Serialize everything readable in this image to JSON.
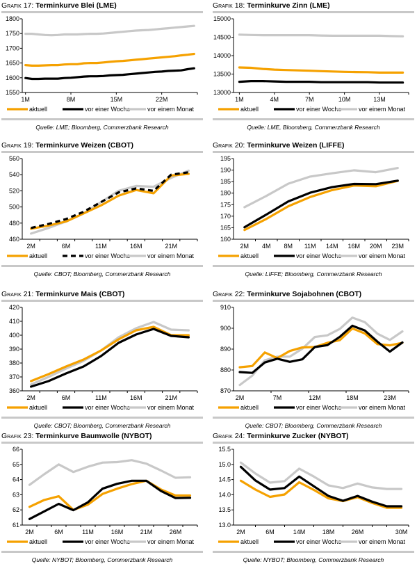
{
  "legend_labels": {
    "aktuell": "aktuell",
    "woche": "vor einer Woche",
    "monat": "vor einem Monat"
  },
  "colors": {
    "aktuell": "#f5a100",
    "woche": "#000000",
    "monat": "#c8c8c8"
  },
  "chart_data": [
    {
      "id": "g17",
      "type": "line",
      "title_prefix": "Grafik",
      "number": "17:",
      "title": "Terminkurve Blei (LME)",
      "source": "Quelle: LME; Bloomberg, Commerzbank Research",
      "ylim": [
        1550,
        1800
      ],
      "yticks": [
        1550,
        1600,
        1650,
        1700,
        1750,
        1800
      ],
      "ytick_labels": [
        "1550",
        "1600",
        "1650",
        "1700",
        "1750",
        "1800"
      ],
      "x_count": 27,
      "xtick_positions": [
        0,
        7,
        14,
        21
      ],
      "xtick_labels": [
        "1M",
        "8M",
        "15M",
        "22M"
      ],
      "tick_marks": [
        0,
        7,
        14,
        21
      ],
      "woche_dashed": false,
      "series": [
        {
          "key": "aktuell",
          "name": "aktuell",
          "values": [
            1643,
            1641,
            1641,
            1642,
            1643,
            1643,
            1645,
            1646,
            1646,
            1649,
            1650,
            1650,
            1652,
            1654,
            1656,
            1657,
            1659,
            1661,
            1663,
            1665,
            1667,
            1669,
            1671,
            1673,
            1676,
            1678,
            1681
          ]
        },
        {
          "key": "woche",
          "name": "vor einer Woche",
          "values": [
            1599,
            1596,
            1596,
            1597,
            1597,
            1597,
            1599,
            1600,
            1602,
            1604,
            1605,
            1605,
            1606,
            1608,
            1609,
            1610,
            1612,
            1614,
            1616,
            1618,
            1620,
            1621,
            1623,
            1624,
            1625,
            1629,
            1632
          ]
        },
        {
          "key": "monat",
          "name": "vor einem Monat",
          "values": [
            1749,
            1749,
            1747,
            1745,
            1744,
            1745,
            1747,
            1747,
            1747,
            1748,
            1749,
            1749,
            1750,
            1752,
            1754,
            1756,
            1758,
            1760,
            1761,
            1762,
            1764,
            1766,
            1768,
            1770,
            1772,
            1774,
            1776
          ]
        }
      ]
    },
    {
      "id": "g18",
      "type": "line",
      "title_prefix": "Grafik",
      "number": "18:",
      "title": "Terminkurve Zinn (LME)",
      "source": "Quelle: LME, Bloomberg, Commerzbank Research",
      "ylim": [
        13000,
        15000
      ],
      "yticks": [
        13000,
        13500,
        14000,
        14500,
        15000
      ],
      "ytick_labels": [
        "13000",
        "13500",
        "14000",
        "14500",
        "15000"
      ],
      "x_count": 15,
      "xtick_positions": [
        0,
        3,
        6,
        9,
        12
      ],
      "xtick_labels": [
        "1M",
        "4M",
        "7M",
        "10M",
        "13M"
      ],
      "tick_marks": [
        0,
        3,
        6,
        9,
        12
      ],
      "woche_dashed": false,
      "series": [
        {
          "key": "aktuell",
          "name": "aktuell",
          "values": [
            13680,
            13670,
            13640,
            13620,
            13610,
            13600,
            13590,
            13580,
            13570,
            13560,
            13555,
            13550,
            13540,
            13540,
            13540
          ]
        },
        {
          "key": "woche",
          "name": "vor einer Woche",
          "values": [
            13290,
            13310,
            13310,
            13300,
            13290,
            13290,
            13290,
            13280,
            13280,
            13280,
            13280,
            13280,
            13270,
            13270,
            13270
          ]
        },
        {
          "key": "monat",
          "name": "vor einem Monat",
          "values": [
            14570,
            14560,
            14555,
            14555,
            14555,
            14555,
            14555,
            14545,
            14540,
            14540,
            14540,
            14540,
            14540,
            14530,
            14525
          ]
        }
      ]
    },
    {
      "id": "g19",
      "type": "line",
      "title_prefix": "Grafik",
      "number": "19:",
      "title": "Terminkurve Weizen (CBOT)",
      "source": "Quelle: CBOT; Bloomberg, Commerzbank Research",
      "ylim": [
        460,
        560
      ],
      "yticks": [
        460,
        480,
        500,
        520,
        540,
        560
      ],
      "ytick_labels": [
        "460",
        "480",
        "500",
        "520",
        "540",
        "560"
      ],
      "x_count": 10,
      "xtick_positions": [
        0,
        2,
        4,
        6,
        8
      ],
      "xtick_labels": [
        "2M",
        "6M",
        "11M",
        "16M",
        "21M"
      ],
      "tick_marks": [
        0.5,
        1.5,
        2.5,
        3.5,
        4.5,
        5.5,
        6.5,
        7.5,
        8.5
      ],
      "woche_dashed": true,
      "series": [
        {
          "key": "aktuell",
          "name": "aktuell",
          "values": [
            473,
            477,
            482,
            492,
            502,
            514,
            521,
            517,
            539,
            541
          ]
        },
        {
          "key": "woche",
          "name": "vor einer Woche",
          "values": [
            474,
            479,
            485,
            494,
            506,
            518,
            523,
            520,
            540,
            543
          ]
        },
        {
          "key": "monat",
          "name": "vor einem Monat",
          "values": [
            467,
            474,
            482,
            492,
            506,
            520,
            526,
            525,
            536,
            545
          ]
        }
      ]
    },
    {
      "id": "g20",
      "type": "line",
      "title_prefix": "Grafik",
      "number": "20:",
      "title": "Terminkurve Weizen (LIFFE)",
      "source": "Quelle: LIFFE; Bloomberg, Commerzbank Research",
      "ylim": [
        160,
        195
      ],
      "yticks": [
        160,
        165,
        170,
        175,
        180,
        185,
        190,
        195
      ],
      "ytick_labels": [
        "160",
        "165",
        "170",
        "175",
        "180",
        "185",
        "190",
        "195"
      ],
      "x_count": 8,
      "xtick_positions": [
        0,
        1,
        2,
        3,
        4,
        5,
        6,
        7
      ],
      "xtick_labels": [
        "2M",
        "4M",
        "8M",
        "11M",
        "14M",
        "16M",
        "20M",
        "23M"
      ],
      "tick_marks": [
        0.5,
        1.5,
        2.5,
        3.5,
        4.5,
        5.5,
        6.5
      ],
      "woche_dashed": false,
      "series": [
        {
          "key": "aktuell",
          "name": "aktuell",
          "values": [
            164.0,
            168.8,
            174.3,
            178.3,
            181.3,
            183.3,
            183.0,
            185.3
          ]
        },
        {
          "key": "woche",
          "name": "vor einer Woche",
          "values": [
            165.2,
            170.7,
            176.4,
            180.2,
            182.6,
            184.0,
            183.9,
            185.4
          ]
        },
        {
          "key": "monat",
          "name": "vor einem Monat",
          "values": [
            173.9,
            178.8,
            184.1,
            187.2,
            188.6,
            189.9,
            189.1,
            190.9
          ]
        }
      ]
    },
    {
      "id": "g21",
      "type": "line",
      "title_prefix": "Grafik",
      "number": "21:",
      "title": "Terminkurve Mais (CBOT)",
      "source": "Quelle: CBOT; Bloomberg, Commerzbank Research",
      "ylim": [
        360,
        420
      ],
      "yticks": [
        360,
        370,
        380,
        390,
        400,
        410,
        420
      ],
      "ytick_labels": [
        "360",
        "370",
        "380",
        "390",
        "400",
        "410",
        "420"
      ],
      "x_count": 10,
      "xtick_positions": [
        0,
        2,
        4,
        6,
        8
      ],
      "xtick_labels": [
        "2M",
        "6M",
        "11M",
        "16M",
        "21M"
      ],
      "tick_marks": [
        0.5,
        1.5,
        2.5,
        3.5,
        4.5,
        5.5,
        6.5,
        7.5,
        8.5
      ],
      "woche_dashed": false,
      "series": [
        {
          "key": "aktuell",
          "name": "aktuell",
          "values": [
            367,
            372,
            377.5,
            382.5,
            389,
            397,
            403.5,
            406,
            400,
            400
          ]
        },
        {
          "key": "woche",
          "name": "vor einer Woche",
          "values": [
            363,
            367,
            372.5,
            377.5,
            385,
            394.5,
            400.5,
            404.5,
            399.5,
            398.5
          ]
        },
        {
          "key": "monat",
          "name": "vor einem Monat",
          "values": [
            364.5,
            370,
            376,
            381.5,
            389,
            398.5,
            405,
            409.5,
            404,
            403.5
          ]
        }
      ]
    },
    {
      "id": "g22",
      "type": "line",
      "title_prefix": "Grafik",
      "number": "22:",
      "title": "Terminkurve Sojabohnen (CBOT)",
      "source": "Quelle: CBOT; Bloomberg, Commerzbank Research",
      "ylim": [
        870,
        910
      ],
      "yticks": [
        870,
        880,
        890,
        900,
        910
      ],
      "ytick_labels": [
        "870",
        "880",
        "890",
        "900",
        "910"
      ],
      "x_count": 14,
      "xtick_positions": [
        0,
        3,
        6,
        9,
        12
      ],
      "xtick_labels": [
        "2M",
        "7M",
        "12M",
        "18M",
        "23M"
      ],
      "tick_marks": [
        2.5,
        5.5,
        8.5,
        11.5
      ],
      "woche_dashed": false,
      "series": [
        {
          "key": "aktuell",
          "name": "aktuell",
          "values": [
            881.3,
            881.9,
            888.4,
            885.7,
            889.1,
            890.8,
            891,
            893,
            894.3,
            899.9,
            897.5,
            892.4,
            891.8,
            893
          ]
        },
        {
          "key": "woche",
          "name": "vor einer Woche",
          "values": [
            879.0,
            878.6,
            883.6,
            885.4,
            883.9,
            885.1,
            891.0,
            891.9,
            895.9,
            901.2,
            898.9,
            893.6,
            888.8,
            893.2
          ]
        },
        {
          "key": "monat",
          "name": "vor einem Monat",
          "values": [
            872.8,
            877.3,
            884.6,
            886.4,
            886.4,
            890.2,
            895.8,
            896.6,
            899.7,
            905.1,
            902.9,
            897.4,
            894.4,
            898.5
          ]
        }
      ]
    },
    {
      "id": "g23",
      "type": "line",
      "title_prefix": "Grafik",
      "number": "23:",
      "title": "Terminkurve Baumwolle (NYBOT)",
      "source": "Quelle: NYBOT; Bloomberg, Commerzbank Research",
      "ylim": [
        61,
        66
      ],
      "yticks": [
        61,
        62,
        63,
        64,
        65,
        66
      ],
      "ytick_labels": [
        "61",
        "62",
        "63",
        "64",
        "65",
        "66"
      ],
      "x_count": 12,
      "xtick_positions": [
        0,
        2,
        4,
        6,
        8,
        10
      ],
      "xtick_labels": [
        "2M",
        "6M",
        "11M",
        "16M",
        "21M",
        "26M"
      ],
      "tick_marks": [
        0.5,
        1.5,
        2.5,
        3.5,
        4.5,
        5.5,
        6.5,
        7.5,
        8.5,
        9.5,
        10.5
      ],
      "woche_dashed": false,
      "series": [
        {
          "key": "aktuell",
          "name": "aktuell",
          "values": [
            62.2,
            62.65,
            62.9,
            62.0,
            62.35,
            63.05,
            63.4,
            63.7,
            63.92,
            63.35,
            62.95,
            62.95
          ]
        },
        {
          "key": "woche",
          "name": "vor einer Woche",
          "values": [
            61.4,
            61.9,
            62.4,
            61.98,
            62.5,
            63.4,
            63.72,
            63.92,
            63.92,
            63.25,
            62.78,
            62.8
          ]
        },
        {
          "key": "monat",
          "name": "vor einem Monat",
          "values": [
            63.65,
            64.35,
            65.0,
            64.5,
            64.85,
            65.12,
            65.15,
            65.28,
            65.05,
            64.6,
            64.12,
            64.15
          ]
        }
      ]
    },
    {
      "id": "g24",
      "type": "line",
      "title_prefix": "Grafik",
      "number": "24:",
      "title": "Terminkurve Zucker (NYBOT)",
      "source": "Quelle: NYBOT; Bloomberg, Commerzbank Research",
      "ylim": [
        13.0,
        15.5
      ],
      "yticks": [
        13.0,
        13.5,
        14.0,
        14.5,
        15.0,
        15.5
      ],
      "ytick_labels": [
        "13.0",
        "13.5",
        "14.0",
        "14.5",
        "15.0",
        "15.5"
      ],
      "x_count": 12,
      "xtick_positions": [
        0,
        2,
        4,
        6,
        8,
        11
      ],
      "xtick_labels": [
        "2M",
        "6M",
        "14M",
        "18M",
        "26M",
        "30M"
      ],
      "tick_marks": [
        1,
        3,
        5,
        7,
        9,
        10
      ],
      "woche_dashed": false,
      "series": [
        {
          "key": "aktuell",
          "name": "aktuell",
          "values": [
            14.46,
            14.17,
            13.93,
            14.01,
            14.41,
            14.16,
            13.88,
            13.79,
            13.92,
            13.73,
            13.57,
            13.57
          ]
        },
        {
          "key": "woche",
          "name": "vor einer Woche",
          "values": [
            14.92,
            14.47,
            14.17,
            14.22,
            14.6,
            14.28,
            13.96,
            13.8,
            13.96,
            13.77,
            13.62,
            13.62
          ]
        },
        {
          "key": "monat",
          "name": "vor einem Monat",
          "values": [
            15.06,
            14.7,
            14.4,
            14.45,
            14.86,
            14.6,
            14.31,
            14.22,
            14.37,
            14.24,
            14.19,
            14.19
          ]
        }
      ]
    }
  ]
}
